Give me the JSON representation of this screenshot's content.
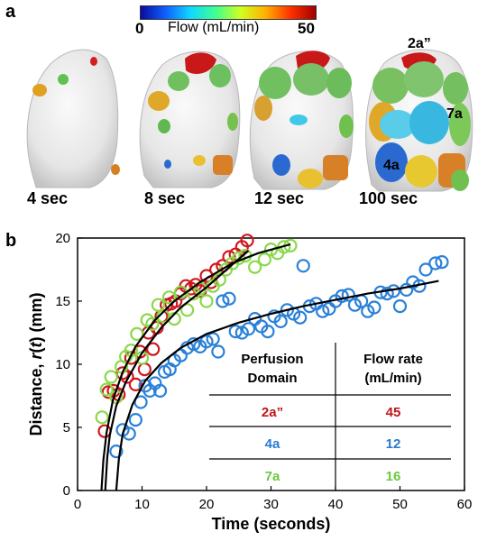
{
  "panels": {
    "a": "a",
    "b": "b"
  },
  "colorbar": {
    "min": "0",
    "max": "50",
    "title": "Flow (mL/min)"
  },
  "time_labels": [
    "4 sec",
    "8 sec",
    "12 sec",
    "100 sec"
  ],
  "brain_annotations": {
    "top": "2a”",
    "right": "7a",
    "left": "4a"
  },
  "colors": {
    "red": "#d0181e",
    "blue": "#2a80d8",
    "green": "#8ad84a",
    "fit": "#000000"
  },
  "chart_data": {
    "type": "scatter",
    "xlabel": "Time (seconds)",
    "ylabel_parts": [
      "Distance, ",
      "r",
      "(",
      "t",
      ") (mm)"
    ],
    "xlim": [
      0,
      60
    ],
    "ylim": [
      0,
      20
    ],
    "xticks": [
      "0",
      "10",
      "20",
      "30",
      "40",
      "50",
      "60"
    ],
    "yticks": [
      "0",
      "5",
      "10",
      "15",
      "20"
    ],
    "series": [
      {
        "name": "2a”",
        "color": "#d0181e",
        "points": [
          [
            4.2,
            4.7
          ],
          [
            4.8,
            7.8
          ],
          [
            5.6,
            7.9
          ],
          [
            6.4,
            7.6
          ],
          [
            7.0,
            9.3
          ],
          [
            7.7,
            9.0
          ],
          [
            8.3,
            10.5
          ],
          [
            9.0,
            8.4
          ],
          [
            9.7,
            11.0
          ],
          [
            10.4,
            9.6
          ],
          [
            11.0,
            12.5
          ],
          [
            11.7,
            11.2
          ],
          [
            12.3,
            12.9
          ],
          [
            13.0,
            13.8
          ],
          [
            13.8,
            14.7
          ],
          [
            14.5,
            14.8
          ],
          [
            15.2,
            15.0
          ],
          [
            16.0,
            15.6
          ],
          [
            16.8,
            16.2
          ],
          [
            17.6,
            16.0
          ],
          [
            18.3,
            16.3
          ],
          [
            19.0,
            15.8
          ],
          [
            20.0,
            17.0
          ],
          [
            20.7,
            16.5
          ],
          [
            21.5,
            17.5
          ],
          [
            22.5,
            17.8
          ],
          [
            23.5,
            18.5
          ],
          [
            24.5,
            18.7
          ],
          [
            25.5,
            19.3
          ],
          [
            26.3,
            19.8
          ]
        ]
      },
      {
        "name": "4a",
        "color": "#2a80d8",
        "points": [
          [
            6.0,
            3.1
          ],
          [
            7.0,
            4.8
          ],
          [
            8.0,
            4.5
          ],
          [
            9.0,
            5.6
          ],
          [
            9.8,
            7.0
          ],
          [
            10.5,
            8.3
          ],
          [
            11.2,
            7.9
          ],
          [
            12.0,
            8.5
          ],
          [
            12.8,
            7.9
          ],
          [
            13.5,
            9.4
          ],
          [
            14.3,
            9.6
          ],
          [
            15.0,
            10.3
          ],
          [
            16.0,
            10.7
          ],
          [
            17.0,
            11.3
          ],
          [
            18.0,
            11.6
          ],
          [
            19.0,
            11.4
          ],
          [
            20.0,
            11.8
          ],
          [
            21.0,
            12.0
          ],
          [
            21.8,
            11.0
          ],
          [
            22.5,
            15.0
          ],
          [
            23.5,
            15.2
          ],
          [
            24.5,
            12.6
          ],
          [
            25.5,
            12.5
          ],
          [
            26.5,
            12.8
          ],
          [
            27.5,
            13.6
          ],
          [
            28.5,
            13.0
          ],
          [
            29.5,
            12.6
          ],
          [
            30.5,
            13.8
          ],
          [
            31.5,
            13.4
          ],
          [
            32.5,
            14.3
          ],
          [
            33.5,
            14.0
          ],
          [
            34.5,
            13.7
          ],
          [
            35.0,
            17.8
          ],
          [
            36.0,
            14.6
          ],
          [
            37.0,
            14.8
          ],
          [
            38.0,
            14.2
          ],
          [
            39.0,
            14.4
          ],
          [
            40.0,
            15.0
          ],
          [
            41.0,
            15.4
          ],
          [
            42.0,
            15.5
          ],
          [
            43.0,
            14.7
          ],
          [
            44.0,
            15.0
          ],
          [
            45.0,
            14.2
          ],
          [
            46.0,
            14.5
          ],
          [
            47.0,
            15.7
          ],
          [
            48.0,
            15.6
          ],
          [
            49.0,
            15.8
          ],
          [
            50.0,
            14.6
          ],
          [
            51.0,
            15.9
          ],
          [
            52.0,
            16.5
          ],
          [
            53.0,
            16.2
          ],
          [
            54.0,
            17.5
          ],
          [
            55.5,
            18.0
          ],
          [
            56.5,
            18.1
          ]
        ]
      },
      {
        "name": "7a",
        "color": "#8ad84a",
        "points": [
          [
            3.8,
            5.8
          ],
          [
            4.5,
            8.0
          ],
          [
            5.2,
            9.0
          ],
          [
            6.0,
            7.4
          ],
          [
            6.8,
            9.8
          ],
          [
            7.5,
            10.6
          ],
          [
            8.3,
            11.1
          ],
          [
            9.2,
            12.4
          ],
          [
            10.0,
            10.5
          ],
          [
            10.8,
            13.5
          ],
          [
            11.6,
            13.2
          ],
          [
            12.5,
            14.7
          ],
          [
            13.3,
            13.8
          ],
          [
            14.2,
            15.3
          ],
          [
            15.0,
            13.6
          ],
          [
            16.0,
            15.7
          ],
          [
            17.0,
            14.3
          ],
          [
            18.0,
            15.6
          ],
          [
            19.0,
            16.0
          ],
          [
            20.0,
            15.0
          ],
          [
            21.0,
            16.2
          ],
          [
            22.0,
            16.7
          ],
          [
            23.0,
            17.5
          ],
          [
            24.0,
            18.0
          ],
          [
            25.0,
            18.4
          ],
          [
            26.0,
            18.6
          ],
          [
            27.5,
            17.7
          ],
          [
            29.0,
            18.3
          ],
          [
            30.0,
            19.1
          ],
          [
            31.0,
            18.8
          ],
          [
            32.0,
            19.3
          ],
          [
            33.0,
            19.4
          ]
        ]
      }
    ],
    "fits": [
      {
        "name": "2a”",
        "points": [
          [
            4.3,
            0
          ],
          [
            4.6,
            2.6
          ],
          [
            5.0,
            4.4
          ],
          [
            6.0,
            6.7
          ],
          [
            7.5,
            8.6
          ],
          [
            10,
            10.9
          ],
          [
            13,
            12.9
          ],
          [
            16,
            14.5
          ],
          [
            20,
            16.1
          ],
          [
            24,
            17.9
          ],
          [
            26.5,
            19.0
          ]
        ]
      },
      {
        "name": "7a",
        "points": [
          [
            3.7,
            0
          ],
          [
            4.0,
            2.4
          ],
          [
            4.5,
            4.6
          ],
          [
            5.5,
            7.2
          ],
          [
            7.0,
            9.4
          ],
          [
            9.0,
            11.4
          ],
          [
            12,
            13.5
          ],
          [
            15,
            15.0
          ],
          [
            19,
            16.5
          ],
          [
            24,
            18.0
          ],
          [
            28,
            18.8
          ],
          [
            33,
            19.5
          ]
        ]
      },
      {
        "name": "4a",
        "points": [
          [
            6.0,
            0
          ],
          [
            6.4,
            2.5
          ],
          [
            7.0,
            4.5
          ],
          [
            8.5,
            6.8
          ],
          [
            10.5,
            8.7
          ],
          [
            13,
            10.1
          ],
          [
            16,
            11.3
          ],
          [
            20,
            12.4
          ],
          [
            25,
            13.3
          ],
          [
            30,
            14.0
          ],
          [
            35,
            14.6
          ],
          [
            40,
            15.1
          ],
          [
            45,
            15.6
          ],
          [
            50,
            16.0
          ],
          [
            56,
            16.6
          ]
        ]
      }
    ],
    "table": {
      "headers": [
        [
          "Perfusion",
          "Domain"
        ],
        [
          "Flow rate",
          "(mL/min)"
        ]
      ],
      "rows": [
        {
          "domain": "2a”",
          "flow": "45",
          "color": "#c0141c"
        },
        {
          "domain": "4a",
          "flow": "12",
          "color": "#2a7ad0"
        },
        {
          "domain": "7a",
          "flow": "16",
          "color": "#6cc840"
        }
      ]
    }
  }
}
